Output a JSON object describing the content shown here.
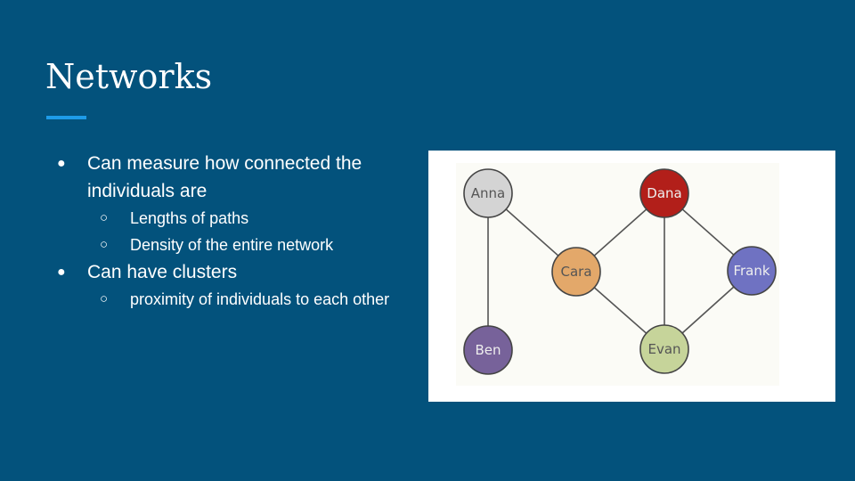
{
  "slide": {
    "title": "Networks",
    "accent_color": "#1e9be8",
    "background_color": "#03527c"
  },
  "bullets": [
    {
      "text": "Can measure how connected the individuals are",
      "subitems": [
        "Lengths of paths",
        "Density of the entire network"
      ]
    },
    {
      "text": "Can have clusters",
      "subitems": [
        "proximity of individuals to each other"
      ]
    }
  ],
  "network": {
    "nodes": [
      {
        "id": "anna",
        "label": "Anna",
        "color": "#d4d4d4"
      },
      {
        "id": "dana",
        "label": "Dana",
        "color": "#b21f1a"
      },
      {
        "id": "cara",
        "label": "Cara",
        "color": "#e3a86a"
      },
      {
        "id": "frank",
        "label": "Frank",
        "color": "#6f72c2"
      },
      {
        "id": "ben",
        "label": "Ben",
        "color": "#77629a"
      },
      {
        "id": "evan",
        "label": "Evan",
        "color": "#c6d49a"
      }
    ],
    "edges": [
      [
        "anna",
        "cara"
      ],
      [
        "anna",
        "ben"
      ],
      [
        "cara",
        "dana"
      ],
      [
        "cara",
        "evan"
      ],
      [
        "dana",
        "evan"
      ],
      [
        "dana",
        "frank"
      ],
      [
        "evan",
        "frank"
      ]
    ]
  }
}
